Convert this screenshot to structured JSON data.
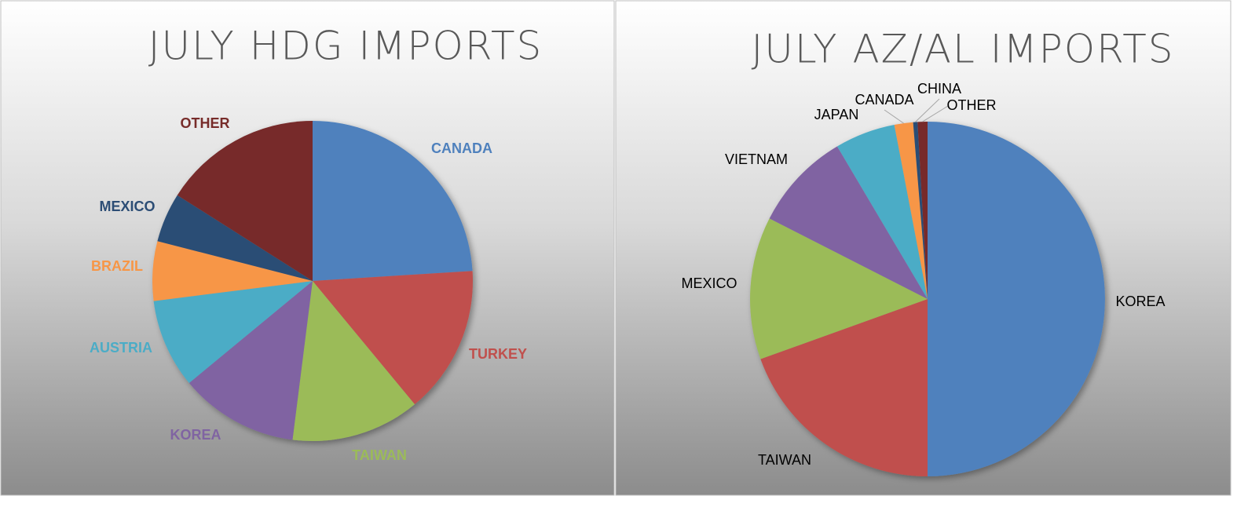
{
  "chart_data": [
    {
      "type": "pie",
      "title": "JULY HDG IMPORTS",
      "categories": [
        "CANADA",
        "TURKEY",
        "TAIWAN",
        "KOREA",
        "AUSTRIA",
        "BRAZIL",
        "MEXICO",
        "OTHER"
      ],
      "values": [
        24,
        15,
        13,
        12,
        9,
        6,
        5,
        16
      ],
      "colors": [
        "#4f81bd",
        "#c0504d",
        "#9bbb59",
        "#8064a2",
        "#4bacc6",
        "#f79646",
        "#2c4d75",
        "#772c2a"
      ],
      "labels_in_slice_color": true
    },
    {
      "type": "pie",
      "title": "JULY AZ/AL IMPORTS",
      "categories": [
        "KOREA",
        "TAIWAN",
        "MEXICO",
        "VIETNAM",
        "JAPAN",
        "CANADA",
        "CHINA",
        "OTHER"
      ],
      "values": [
        50,
        19.5,
        13,
        9,
        5.5,
        1.7,
        0.4,
        0.9
      ],
      "colors": [
        "#4f81bd",
        "#c0504d",
        "#9bbb59",
        "#8064a2",
        "#4bacc6",
        "#f79646",
        "#2c4d75",
        "#772c2a"
      ],
      "labels_in_slice_color": false
    }
  ]
}
